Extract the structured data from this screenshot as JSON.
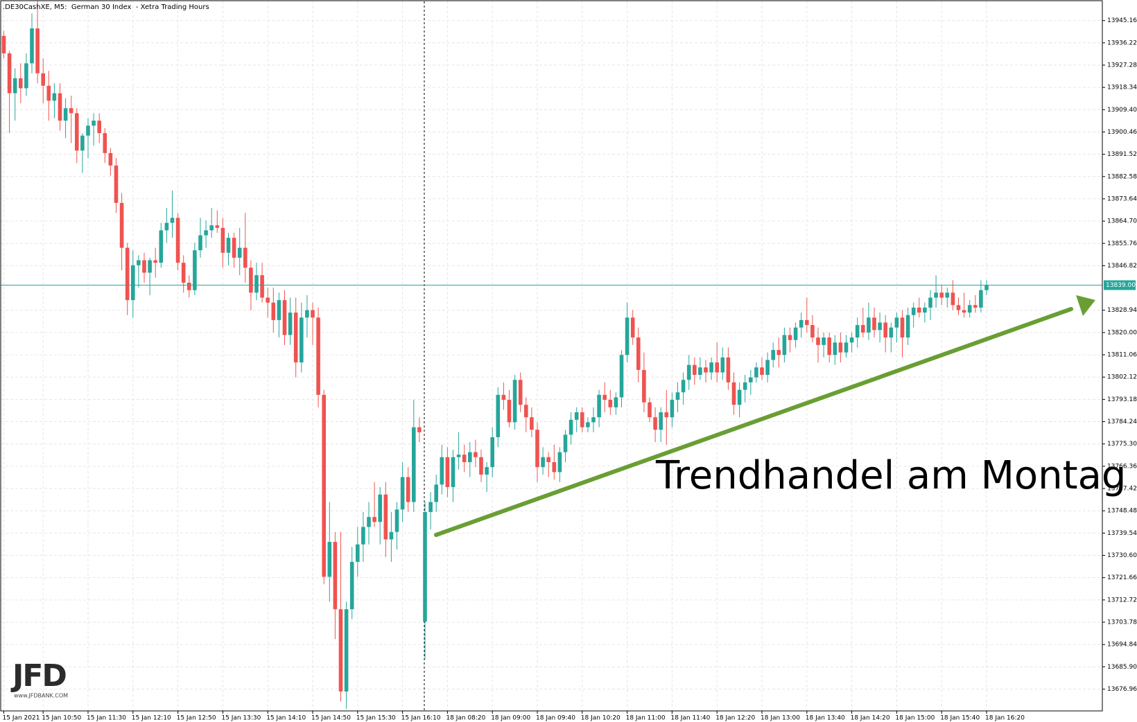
{
  "chart_data": {
    "type": "candlestick",
    "title": ".DE30CashXE, M5:  German 30 Index  - Xetra Trading Hours",
    "annotation": "Trendhandel am Montag",
    "logo": "JFD",
    "logo_subtitle": "www.JFDBANK.COM",
    "up_color": "#26a69a",
    "down_color": "#ef5350",
    "current_price": {
      "value": 13839,
      "label": "13839.00"
    },
    "current_price_color": "#26a69a",
    "grid": true,
    "ylim": [
      13668.2,
      13953.4
    ],
    "yticks": [
      13945.16,
      13936.22,
      13927.28,
      13918.34,
      {
        "value": 13909.4,
        "label": "13909.40"
      },
      13900.46,
      13891.52,
      13882.58,
      13873.64,
      {
        "value": 13864.7,
        "label": "13864.70"
      },
      13855.76,
      13846.82,
      13828.94,
      {
        "value": 13820,
        "label": "13820.00"
      },
      13811.06,
      13802.12,
      13793.18,
      13784.24,
      {
        "value": 13775.3,
        "label": "13775.30"
      },
      13766.36,
      13757.42,
      13748.48,
      13739.54,
      {
        "value": 13730.6,
        "label": "13730.60"
      },
      13721.66,
      13712.72,
      13703.78,
      13694.84,
      {
        "value": 13685.9,
        "label": "13685.90"
      },
      13676.96
    ],
    "categories": [
      "15 Jan 2021",
      null,
      null,
      null,
      null,
      null,
      null,
      "15 Jan 10:50",
      null,
      null,
      null,
      null,
      null,
      null,
      null,
      "15 Jan 11:30",
      null,
      null,
      null,
      null,
      null,
      null,
      null,
      "15 Jan 12:10",
      null,
      null,
      null,
      null,
      null,
      null,
      null,
      "15 Jan 12:50",
      null,
      null,
      null,
      null,
      null,
      null,
      null,
      "15 Jan 13:30",
      null,
      null,
      null,
      null,
      null,
      null,
      null,
      "15 Jan 14:10",
      null,
      null,
      null,
      null,
      null,
      null,
      null,
      "15 Jan 14:50",
      null,
      null,
      null,
      null,
      null,
      null,
      null,
      "15 Jan 15:30",
      null,
      null,
      null,
      null,
      null,
      null,
      null,
      "15 Jan 16:10",
      null,
      null,
      null,
      null,
      null,
      null,
      null,
      "18 Jan 08:20",
      null,
      null,
      null,
      null,
      null,
      null,
      null,
      "18 Jan 09:00",
      null,
      null,
      null,
      null,
      null,
      null,
      null,
      "18 Jan 09:40",
      null,
      null,
      null,
      null,
      null,
      null,
      null,
      "18 Jan 10:20",
      null,
      null,
      null,
      null,
      null,
      null,
      null,
      "18 Jan 11:00",
      null,
      null,
      null,
      null,
      null,
      null,
      null,
      "18 Jan 11:40",
      null,
      null,
      null,
      null,
      null,
      null,
      null,
      "18 Jan 12:20",
      null,
      null,
      null,
      null,
      null,
      null,
      null,
      "18 Jan 13:00",
      null,
      null,
      null,
      null,
      null,
      null,
      null,
      "18 Jan 13:40",
      null,
      null,
      null,
      null,
      null,
      null,
      null,
      "18 Jan 14:20",
      null,
      null,
      null,
      null,
      null,
      null,
      null,
      "18 Jan 15:00",
      null,
      null,
      null,
      null,
      null,
      null,
      null,
      "18 Jan 15:40",
      null,
      null,
      null,
      null,
      null,
      null,
      null,
      "18 Jan 16:20"
    ],
    "candles": [
      [
        13939,
        13941,
        13930,
        13932
      ],
      [
        13932,
        13933,
        13900,
        13916
      ],
      [
        13916,
        13926,
        13905,
        13922
      ],
      [
        13922,
        13928,
        13912,
        13918
      ],
      [
        13918,
        13932,
        13915,
        13928
      ],
      [
        13928,
        13948,
        13924,
        13942
      ],
      [
        13942,
        13953,
        13920,
        13924
      ],
      [
        13924,
        13930,
        13912,
        13919
      ],
      [
        13919,
        13925,
        13905,
        13913
      ],
      [
        13913,
        13920,
        13906,
        13916
      ],
      [
        13916,
        13920,
        13901,
        13905
      ],
      [
        13905,
        13914,
        13898,
        13910
      ],
      [
        13910,
        13915,
        13896,
        13908
      ],
      [
        13908,
        13910,
        13888,
        13893
      ],
      [
        13893,
        13900,
        13884,
        13899
      ],
      [
        13899,
        13906,
        13890,
        13903
      ],
      [
        13903,
        13908,
        13895,
        13905
      ],
      [
        13905,
        13908,
        13896,
        13900
      ],
      [
        13900,
        13902,
        13888,
        13892
      ],
      [
        13892,
        13894,
        13883,
        13887
      ],
      [
        13887,
        13890,
        13868,
        13872
      ],
      [
        13872,
        13876,
        13845,
        13854
      ],
      [
        13854,
        13856,
        13827,
        13833
      ],
      [
        13833,
        13853,
        13826,
        13847
      ],
      [
        13847,
        13851,
        13838,
        13849
      ],
      [
        13849,
        13852,
        13840,
        13844
      ],
      [
        13844,
        13850,
        13835,
        13849
      ],
      [
        13849,
        13854,
        13842,
        13848
      ],
      [
        13848,
        13864,
        13846,
        13861
      ],
      [
        13861,
        13870,
        13856,
        13864
      ],
      [
        13864,
        13877,
        13858,
        13866
      ],
      [
        13866,
        13868,
        13845,
        13848
      ],
      [
        13848,
        13851,
        13836,
        13840
      ],
      [
        13840,
        13843,
        13834,
        13837
      ],
      [
        13837,
        13856,
        13835,
        13853
      ],
      [
        13853,
        13866,
        13850,
        13859
      ],
      [
        13859,
        13865,
        13854,
        13861
      ],
      [
        13861,
        13870,
        13858,
        13863
      ],
      [
        13863,
        13869,
        13860,
        13862
      ],
      [
        13862,
        13866,
        13846,
        13852
      ],
      [
        13852,
        13860,
        13847,
        13858
      ],
      [
        13858,
        13860,
        13846,
        13850
      ],
      [
        13850,
        13862,
        13843,
        13854
      ],
      [
        13854,
        13868,
        13840,
        13846
      ],
      [
        13846,
        13849,
        13829,
        13836
      ],
      [
        13836,
        13848,
        13833,
        13843
      ],
      [
        13843,
        13848,
        13832,
        13834
      ],
      [
        13834,
        13838,
        13826,
        13832
      ],
      [
        13832,
        13838,
        13820,
        13825
      ],
      [
        13825,
        13836,
        13818,
        13833
      ],
      [
        13833,
        13837,
        13815,
        13819
      ],
      [
        13819,
        13834,
        13815,
        13828
      ],
      [
        13828,
        13834,
        13802,
        13808
      ],
      [
        13808,
        13832,
        13804,
        13826
      ],
      [
        13826,
        13835,
        13818,
        13829
      ],
      [
        13829,
        13832,
        13815,
        13826
      ],
      [
        13826,
        13830,
        13790,
        13795
      ],
      [
        13795,
        13797,
        13719,
        13722
      ],
      [
        13722,
        13752,
        13712,
        13736
      ],
      [
        13736,
        13740,
        13697,
        13709
      ],
      [
        13709,
        13740,
        13672,
        13676
      ],
      [
        13676,
        13712,
        13669,
        13709
      ],
      [
        13709,
        13734,
        13705,
        13728
      ],
      [
        13728,
        13742,
        13722,
        13735
      ],
      [
        13735,
        13748,
        13728,
        13742
      ],
      [
        13742,
        13752,
        13735,
        13746
      ],
      [
        13746,
        13760,
        13742,
        13744
      ],
      [
        13744,
        13758,
        13735,
        13755
      ],
      [
        13755,
        13760,
        13730,
        13737
      ],
      [
        13737,
        13748,
        13728,
        13740
      ],
      [
        13740,
        13752,
        13733,
        13749
      ],
      [
        13749,
        13768,
        13744,
        13762
      ],
      [
        13762,
        13766,
        13748,
        13752
      ],
      [
        13752,
        13793,
        13748,
        13782
      ],
      [
        13782,
        13786,
        13776,
        13780
      ],
      [
        13704,
        13752,
        13689,
        13748
      ],
      [
        13748,
        13756,
        13741,
        13752
      ],
      [
        13752,
        13763,
        13748,
        13759
      ],
      [
        13759,
        13775,
        13755,
        13770
      ],
      [
        13770,
        13774,
        13754,
        13758
      ],
      [
        13758,
        13773,
        13752,
        13770
      ],
      [
        13770,
        13780,
        13765,
        13771
      ],
      [
        13771,
        13775,
        13764,
        13768
      ],
      [
        13768,
        13776,
        13762,
        13772
      ],
      [
        13772,
        13777,
        13766,
        13770
      ],
      [
        13770,
        13773,
        13760,
        13763
      ],
      [
        13763,
        13768,
        13756,
        13766
      ],
      [
        13766,
        13782,
        13762,
        13778
      ],
      [
        13778,
        13798,
        13774,
        13795
      ],
      [
        13795,
        13800,
        13789,
        13793
      ],
      [
        13793,
        13797,
        13782,
        13784
      ],
      [
        13784,
        13803,
        13781,
        13801
      ],
      [
        13801,
        13804,
        13788,
        13791
      ],
      [
        13791,
        13794,
        13780,
        13786
      ],
      [
        13786,
        13790,
        13778,
        13781
      ],
      [
        13781,
        13784,
        13760,
        13766
      ],
      [
        13766,
        13774,
        13763,
        13770
      ],
      [
        13770,
        13772,
        13762,
        13768
      ],
      [
        13768,
        13775,
        13761,
        13764
      ],
      [
        13764,
        13774,
        13760,
        13772
      ],
      [
        13772,
        13781,
        13768,
        13779
      ],
      [
        13779,
        13788,
        13775,
        13785
      ],
      [
        13785,
        13790,
        13780,
        13788
      ],
      [
        13788,
        13790,
        13780,
        13782
      ],
      [
        13782,
        13786,
        13780,
        13784
      ],
      [
        13784,
        13790,
        13780,
        13786
      ],
      [
        13786,
        13797,
        13782,
        13795
      ],
      [
        13795,
        13800,
        13788,
        13793
      ],
      [
        13793,
        13797,
        13787,
        13790
      ],
      [
        13790,
        13796,
        13787,
        13794
      ],
      [
        13794,
        13813,
        13790,
        13811
      ],
      [
        13811,
        13832,
        13808,
        13826
      ],
      [
        13826,
        13829,
        13815,
        13818
      ],
      [
        13818,
        13822,
        13800,
        13805
      ],
      [
        13805,
        13812,
        13788,
        13792
      ],
      [
        13792,
        13794,
        13784,
        13786
      ],
      [
        13786,
        13790,
        13776,
        13781
      ],
      [
        13781,
        13790,
        13776,
        13788
      ],
      [
        13788,
        13797,
        13775,
        13786
      ],
      [
        13786,
        13796,
        13782,
        13793
      ],
      [
        13793,
        13800,
        13788,
        13796
      ],
      [
        13796,
        13804,
        13791,
        13801
      ],
      [
        13801,
        13811,
        13797,
        13807
      ],
      [
        13807,
        13810,
        13799,
        13803
      ],
      [
        13803,
        13810,
        13801,
        13806
      ],
      [
        13806,
        13809,
        13800,
        13804
      ],
      [
        13804,
        13810,
        13801,
        13808
      ],
      [
        13808,
        13816,
        13800,
        13804
      ],
      [
        13804,
        13814,
        13801,
        13810
      ],
      [
        13810,
        13814,
        13797,
        13800
      ],
      [
        13800,
        13804,
        13787,
        13791
      ],
      [
        13791,
        13800,
        13786,
        13797
      ],
      [
        13797,
        13803,
        13792,
        13800
      ],
      [
        13800,
        13805,
        13795,
        13802
      ],
      [
        13802,
        13808,
        13800,
        13806
      ],
      [
        13806,
        13810,
        13801,
        13803
      ],
      [
        13803,
        13812,
        13800,
        13809
      ],
      [
        13809,
        13816,
        13806,
        13813
      ],
      [
        13813,
        13818,
        13806,
        13811
      ],
      [
        13811,
        13822,
        13808,
        13819
      ],
      [
        13819,
        13822,
        13812,
        13817
      ],
      [
        13817,
        13824,
        13814,
        13822
      ],
      [
        13822,
        13828,
        13818,
        13825
      ],
      [
        13825,
        13834,
        13820,
        13823
      ],
      [
        13823,
        13827,
        13816,
        13818
      ],
      [
        13818,
        13822,
        13808,
        13815
      ],
      [
        13815,
        13820,
        13810,
        13818
      ],
      [
        13818,
        13820,
        13808,
        13811
      ],
      [
        13811,
        13819,
        13807,
        13816
      ],
      [
        13816,
        13820,
        13808,
        13812
      ],
      [
        13812,
        13819,
        13810,
        13816
      ],
      [
        13816,
        13820,
        13812,
        13818
      ],
      [
        13818,
        13826,
        13814,
        13823
      ],
      [
        13823,
        13830,
        13818,
        13820
      ],
      [
        13820,
        13832,
        13817,
        13826
      ],
      [
        13826,
        13830,
        13818,
        13821
      ],
      [
        13821,
        13828,
        13816,
        13824
      ],
      [
        13824,
        13827,
        13812,
        13818
      ],
      [
        13818,
        13824,
        13812,
        13822
      ],
      [
        13822,
        13828,
        13816,
        13826
      ],
      [
        13826,
        13829,
        13810,
        13818
      ],
      [
        13818,
        13830,
        13815,
        13827
      ],
      [
        13827,
        13832,
        13822,
        13830
      ],
      [
        13830,
        13834,
        13826,
        13828
      ],
      [
        13828,
        13832,
        13824,
        13830
      ],
      [
        13830,
        13837,
        13825,
        13834
      ],
      [
        13834,
        13843,
        13830,
        13836
      ],
      [
        13836,
        13839,
        13831,
        13834
      ],
      [
        13834,
        13838,
        13830,
        13836
      ],
      [
        13836,
        13841,
        13829,
        13831
      ],
      [
        13831,
        13834,
        13827,
        13829
      ],
      [
        13829,
        13836,
        13826,
        13828
      ],
      [
        13828,
        13833,
        13826,
        13831
      ],
      [
        13831,
        13835,
        13828,
        13830
      ],
      [
        13830,
        13841,
        13828,
        13837
      ],
      [
        13837,
        13841,
        13835,
        13839
      ]
    ]
  }
}
